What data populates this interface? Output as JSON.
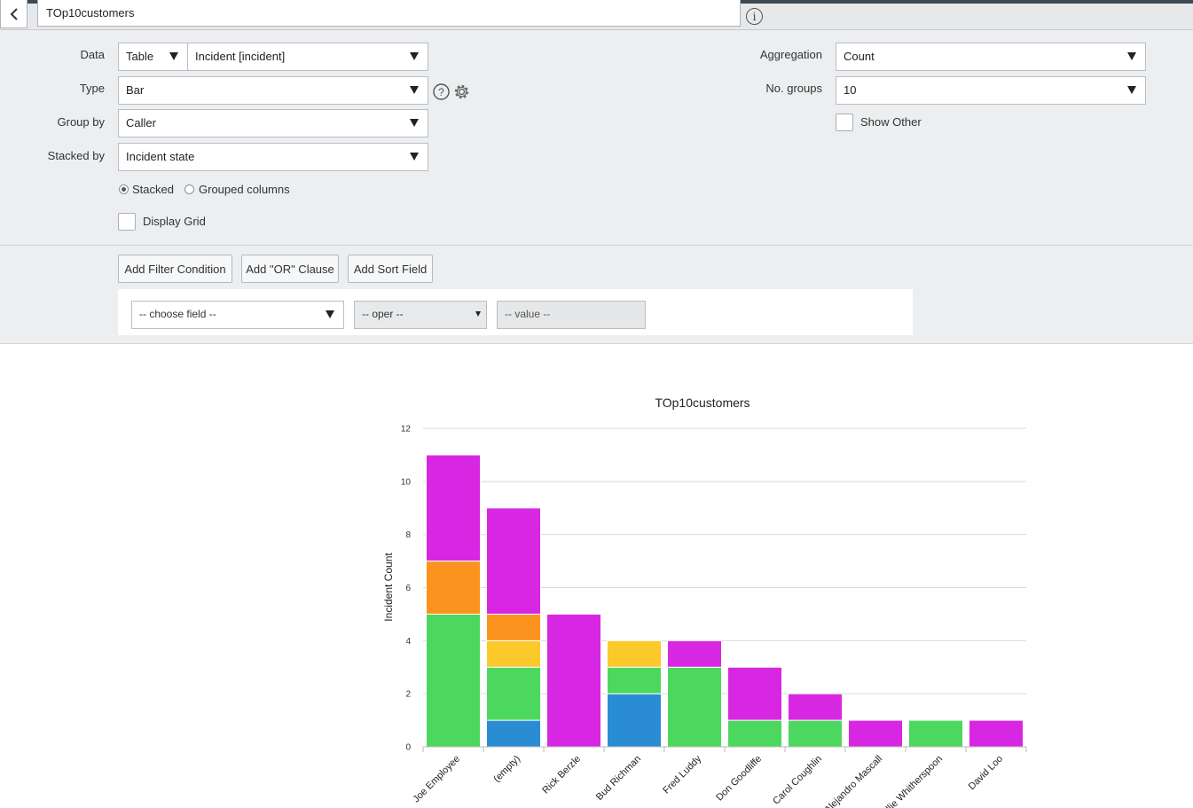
{
  "header": {
    "title_value": "TOp10customers"
  },
  "config": {
    "data_label": "Data",
    "data_source": "Table",
    "data_table": "Incident [incident]",
    "type_label": "Type",
    "type_value": "Bar",
    "group_by_label": "Group by",
    "group_by_value": "Caller",
    "stacked_by_label": "Stacked by",
    "stacked_by_value": "Incident state",
    "stacked_option": "Stacked",
    "grouped_option": "Grouped columns",
    "stacked_selected": true,
    "display_grid_label": "Display Grid",
    "display_grid_checked": false,
    "aggregation_label": "Aggregation",
    "aggregation_value": "Count",
    "no_groups_label": "No. groups",
    "no_groups_value": "10",
    "show_other_label": "Show Other",
    "show_other_checked": false
  },
  "filter": {
    "add_filter_label": "Add Filter Condition",
    "add_or_label": "Add \"OR\" Clause",
    "add_sort_label": "Add Sort Field",
    "field_placeholder": "-- choose field --",
    "oper_placeholder": "-- oper --",
    "value_placeholder": "-- value --"
  },
  "colors": {
    "green": "#4cd85e",
    "orange": "#fb931e",
    "yellow": "#fcc92a",
    "magenta": "#d827e2",
    "blue": "#2a8dd4"
  },
  "chart_data": {
    "type": "bar",
    "stacked": true,
    "title": "TOp10customers",
    "xlabel": "",
    "ylabel": "Incident Count",
    "ylim": [
      0,
      12
    ],
    "yticks": [
      "0",
      "2",
      "4",
      "6",
      "8",
      "10",
      "12"
    ],
    "grid": true,
    "categories": [
      "Joe Employee",
      "(empty)",
      "Rick Berzle",
      "Bud Richman",
      "Fred Luddy",
      "Don Goodliffe",
      "Carol Coughlin",
      "Alejandro Mascall",
      "Allie Whitherspoon",
      "David Loo"
    ],
    "series": [
      {
        "color": "#2a8dd4",
        "values": [
          0,
          1,
          0,
          2,
          0,
          0,
          0,
          0,
          0,
          0
        ]
      },
      {
        "color": "#4cd85e",
        "values": [
          5,
          2,
          0,
          1,
          3,
          1,
          1,
          0,
          1,
          0
        ]
      },
      {
        "color": "#fcc92a",
        "values": [
          0,
          1,
          0,
          1,
          0,
          0,
          0,
          0,
          0,
          0
        ]
      },
      {
        "color": "#fb931e",
        "values": [
          2,
          1,
          0,
          0,
          0,
          0,
          0,
          0,
          0,
          0
        ]
      },
      {
        "color": "#d827e2",
        "values": [
          4,
          4,
          5,
          0,
          1,
          2,
          1,
          1,
          0,
          1
        ]
      }
    ]
  }
}
